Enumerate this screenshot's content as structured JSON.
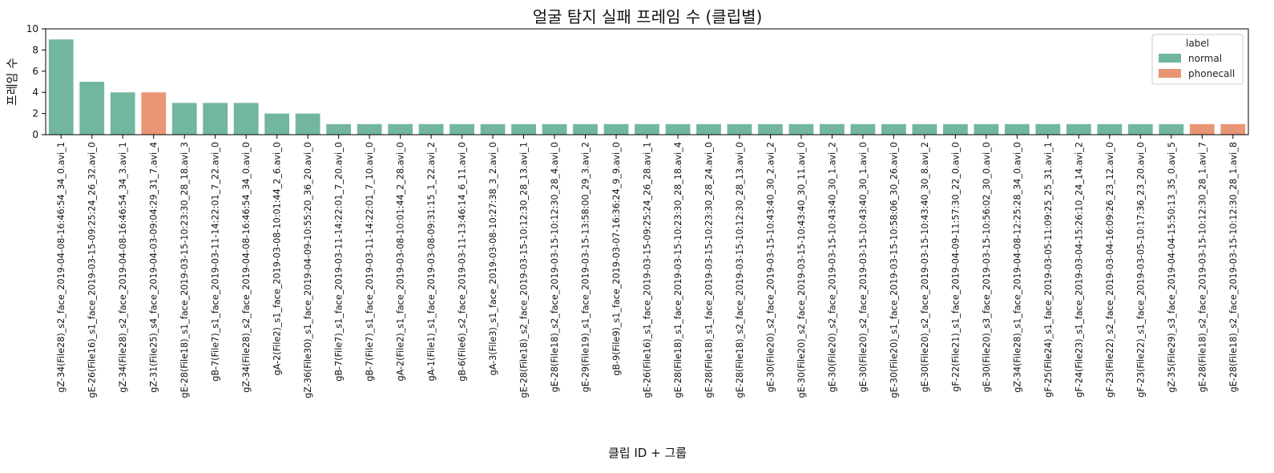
{
  "chart_data": {
    "type": "bar",
    "title": "얼굴 탐지 실패 프레임 수 (클립별)",
    "xlabel": "클립 ID + 그룹",
    "ylabel": "프레임 수",
    "ylim": [
      0,
      10
    ],
    "yticks": [
      0,
      2,
      4,
      6,
      8,
      10
    ],
    "grid": false,
    "legend": {
      "title": "label",
      "placement": "top-right",
      "entries": [
        {
          "name": "normal",
          "color": "#72b6a1"
        },
        {
          "name": "phonecall",
          "color": "#e99675"
        }
      ]
    },
    "categories": [
      "gZ-34(File28)_s2_face_2019-04-08-16:46:54_34_0.avi_1",
      "gE-26(File16)_s1_face_2019-03-15-09:25:24_26_32.avi_0",
      "gZ-34(File28)_s2_face_2019-04-08-16:46:54_34_3.avi_1",
      "gZ-31(File25)_s4_face_2019-04-03-09:04:29_31_7.avi_4",
      "gE-28(File18)_s1_face_2019-03-15-10:23:30_28_18.avi_3",
      "gB-7(File7)_s1_face_2019-03-11-14:22:01_7_22.avi_0",
      "gZ-34(File28)_s2_face_2019-04-08-16:46:54_34_0.avi_0",
      "gA-2(File2)_s1_face_2019-03-08-10:01:44_2_6.avi_0",
      "gZ-36(File30)_s1_face_2019-04-09-10:55:20_36_20.avi_0",
      "gB-7(File7)_s1_face_2019-03-11-14:22:01_7_20.avi_0",
      "gB-7(File7)_s1_face_2019-03-11-14:22:01_7_10.avi_0",
      "gA-2(File2)_s1_face_2019-03-08-10:01:44_2_28.avi_0",
      "gA-1(File1)_s1_face_2019-03-08-09:31:15_1_22.avi_2",
      "gB-6(File6)_s2_face_2019-03-11-13:46:14_6_11.avi_0",
      "gA-3(File3)_s1_face_2019-03-08-10:27:38_3_2.avi_0",
      "gE-28(File18)_s2_face_2019-03-15-10:12:30_28_13.avi_1",
      "gE-28(File18)_s2_face_2019-03-15-10:12:30_28_4.avi_0",
      "gE-29(File19)_s1_face_2019-03-15-13:58:00_29_3.avi_2",
      "gB-9(File9)_s1_face_2019-03-07-16:36:24_9_9.avi_0",
      "gE-26(File16)_s1_face_2019-03-15-09:25:24_26_28.avi_1",
      "gE-28(File18)_s1_face_2019-03-15-10:23:30_28_18.avi_4",
      "gE-28(File18)_s1_face_2019-03-15-10:23:30_28_24.avi_0",
      "gE-28(File18)_s2_face_2019-03-15-10:12:30_28_13.avi_0",
      "gE-30(File20)_s2_face_2019-03-15-10:43:40_30_2.avi_2",
      "gE-30(File20)_s2_face_2019-03-15-10:43:40_30_11.avi_0",
      "gE-30(File20)_s2_face_2019-03-15-10:43:40_30_1.avi_2",
      "gE-30(File20)_s2_face_2019-03-15-10:43:40_30_1.avi_0",
      "gE-30(File20)_s1_face_2019-03-15-10:58:06_30_26.avi_0",
      "gE-30(File20)_s2_face_2019-03-15-10:43:40_30_8.avi_2",
      "gF-22(File21)_s1_face_2019-04-09-11:57:30_22_0.avi_0",
      "gE-30(File20)_s3_face_2019-03-15-10:56:02_30_0.avi_0",
      "gZ-34(File28)_s1_face_2019-04-08-12:25:28_34_0.avi_0",
      "gF-25(File24)_s1_face_2019-03-05-11:09:25_25_31.avi_1",
      "gF-24(File23)_s1_face_2019-03-04-15:26:10_24_14.avi_2",
      "gF-23(File22)_s2_face_2019-03-04-16:09:26_23_12.avi_0",
      "gF-23(File22)_s1_face_2019-03-05-10:17:36_23_20.avi_0",
      "gZ-35(File29)_s3_face_2019-04-04-15:50:13_35_0.avi_5",
      "gE-28(File18)_s2_face_2019-03-15-10:12:30_28_1.avi_7",
      "gE-28(File18)_s2_face_2019-03-15-10:12:30_28_1.avi_8"
    ],
    "values": [
      9,
      5,
      4,
      4,
      3,
      3,
      3,
      2,
      2,
      1,
      1,
      1,
      1,
      1,
      1,
      1,
      1,
      1,
      1,
      1,
      1,
      1,
      1,
      1,
      1,
      1,
      1,
      1,
      1,
      1,
      1,
      1,
      1,
      1,
      1,
      1,
      1,
      1,
      1
    ],
    "labels": [
      "normal",
      "normal",
      "normal",
      "phonecall",
      "normal",
      "normal",
      "normal",
      "normal",
      "normal",
      "normal",
      "normal",
      "normal",
      "normal",
      "normal",
      "normal",
      "normal",
      "normal",
      "normal",
      "normal",
      "normal",
      "normal",
      "normal",
      "normal",
      "normal",
      "normal",
      "normal",
      "normal",
      "normal",
      "normal",
      "normal",
      "normal",
      "normal",
      "normal",
      "normal",
      "normal",
      "normal",
      "normal",
      "phonecall",
      "phonecall"
    ]
  }
}
